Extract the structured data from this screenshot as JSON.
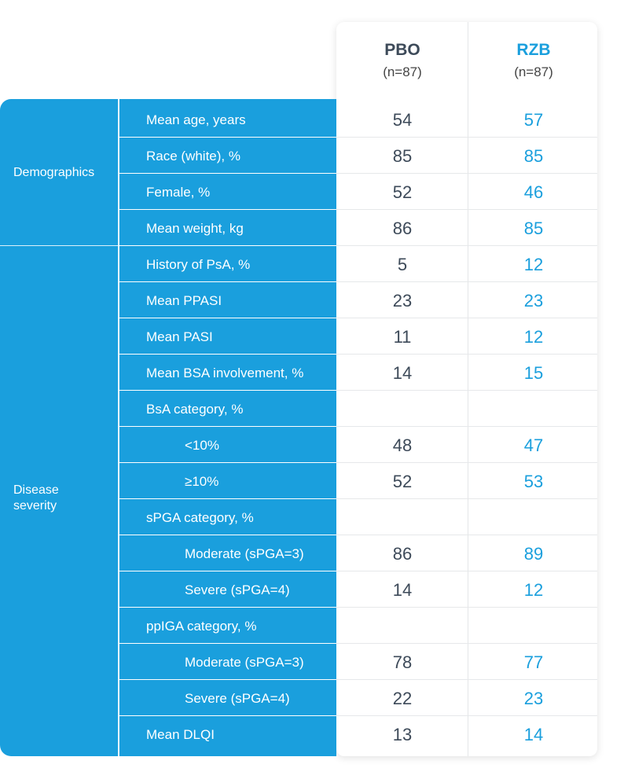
{
  "chart_data": {
    "type": "table",
    "columns": [
      {
        "name": "PBO",
        "n": "(n=87)",
        "color": "#3d4a59"
      },
      {
        "name": "RZB",
        "n": "(n=87)",
        "color": "#1a9fdd"
      }
    ],
    "groups": [
      {
        "label": "Demographics",
        "row_start": 0,
        "row_count": 4
      },
      {
        "label": "Disease\nseverity",
        "row_start": 4,
        "row_count": 14
      }
    ],
    "rows": [
      {
        "label": "Mean age, years",
        "indent": 0,
        "pbo": "54",
        "rzb": "57"
      },
      {
        "label": "Race (white), %",
        "indent": 0,
        "pbo": "85",
        "rzb": "85"
      },
      {
        "label": "Female, %",
        "indent": 0,
        "pbo": "52",
        "rzb": "46"
      },
      {
        "label": "Mean weight, kg",
        "indent": 0,
        "pbo": "86",
        "rzb": "85"
      },
      {
        "label": "History of PsA, %",
        "indent": 0,
        "pbo": "5",
        "rzb": "12"
      },
      {
        "label": "Mean PPASI",
        "indent": 0,
        "pbo": "23",
        "rzb": "23"
      },
      {
        "label": "Mean PASI",
        "indent": 0,
        "pbo": "11",
        "rzb": "12"
      },
      {
        "label": "Mean BSA involvement, %",
        "indent": 0,
        "pbo": "14",
        "rzb": "15"
      },
      {
        "label": "BsA category, %",
        "indent": 0,
        "pbo": "",
        "rzb": ""
      },
      {
        "label": "<10%",
        "indent": 1,
        "pbo": "48",
        "rzb": "47"
      },
      {
        "label": "≥10%",
        "indent": 1,
        "pbo": "52",
        "rzb": "53"
      },
      {
        "label": "sPGA category, %",
        "indent": 0,
        "pbo": "",
        "rzb": ""
      },
      {
        "label": "Moderate (sPGA=3)",
        "indent": 1,
        "pbo": "86",
        "rzb": "89"
      },
      {
        "label": "Severe (sPGA=4)",
        "indent": 1,
        "pbo": "14",
        "rzb": "12"
      },
      {
        "label": "ppIGA category, %",
        "indent": 0,
        "pbo": "",
        "rzb": ""
      },
      {
        "label": "Moderate (sPGA=3)",
        "indent": 1,
        "pbo": "78",
        "rzb": "77"
      },
      {
        "label": "Severe (sPGA=4)",
        "indent": 1,
        "pbo": "22",
        "rzb": "23"
      },
      {
        "label": "Mean DLQI",
        "indent": 0,
        "pbo": "13",
        "rzb": "14"
      }
    ]
  }
}
